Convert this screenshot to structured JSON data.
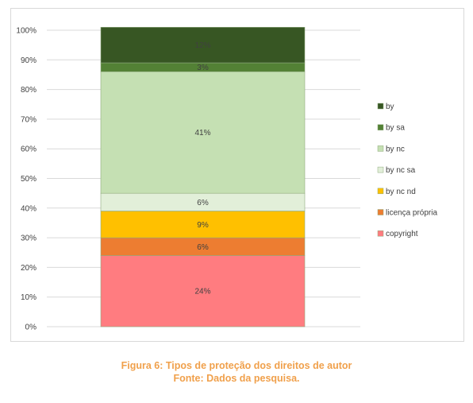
{
  "caption": {
    "title": "Figura 6: Tipos de proteção dos direitos de autor",
    "source": "Fonte: Dados da pesquisa."
  },
  "chart_data": {
    "type": "bar",
    "stacked": "percent",
    "ylim": [
      0,
      100
    ],
    "yticks": [
      "0%",
      "10%",
      "20%",
      "30%",
      "40%",
      "50%",
      "60%",
      "70%",
      "80%",
      "90%",
      "100%"
    ],
    "grid": true,
    "legend_position": "right",
    "series": [
      {
        "name": "copyright",
        "value": 24,
        "label": "24%",
        "color": "#ff7c80"
      },
      {
        "name": "licença própria",
        "value": 6,
        "label": "6%",
        "color": "#ed7d31"
      },
      {
        "name": "by nc nd",
        "value": 9,
        "label": "9%",
        "color": "#ffc000"
      },
      {
        "name": "by nc sa",
        "value": 6,
        "label": "6%",
        "color": "#e2efd9"
      },
      {
        "name": "by nc",
        "value": 41,
        "label": "41%",
        "color": "#c5e0b3"
      },
      {
        "name": "by sa",
        "value": 3,
        "label": "3%",
        "color": "#538135"
      },
      {
        "name": "by",
        "value": 12,
        "label": "12%",
        "color": "#375623"
      }
    ]
  }
}
